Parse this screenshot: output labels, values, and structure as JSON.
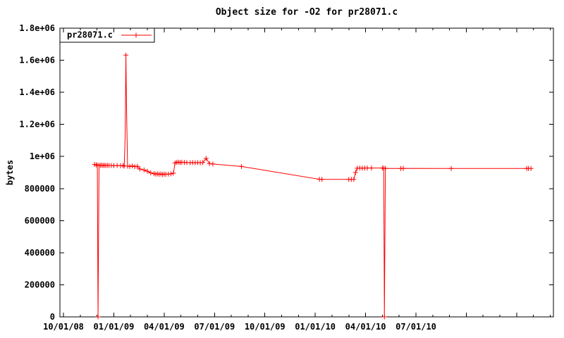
{
  "title": "Object size for -O2 for pr28071.c",
  "colors": {
    "series": "#ff0000",
    "axis": "#000000",
    "background": "#ffffff"
  },
  "chart_data": {
    "type": "line",
    "title": "Object size for -O2 for pr28071.c",
    "xlabel": "",
    "ylabel": "bytes",
    "grid": false,
    "legend_position": "top-left-boxed",
    "legend": [
      {
        "name": "pr28071.c",
        "color": "#ff0000",
        "marker": "plus"
      }
    ],
    "x_unit": "months since 2008-10-01",
    "xlim": [
      -0.21,
      29.19
    ],
    "ylim": [
      0,
      1800000
    ],
    "y_ticks": {
      "values": [
        0,
        200000,
        400000,
        600000,
        800000,
        1000000,
        1200000,
        1400000,
        1600000,
        1800000
      ],
      "labels": [
        "0",
        "200000",
        "400000",
        "600000",
        "800000",
        "1e+06",
        "1.2e+06",
        "1.4e+06",
        "1.6e+06",
        "1.8e+06"
      ]
    },
    "x_tick_labels": [
      {
        "month": 0,
        "label": "10/01/08"
      },
      {
        "month": 3,
        "label": "01/01/09"
      },
      {
        "month": 6,
        "label": "04/01/09"
      },
      {
        "month": 9,
        "label": "07/01/09"
      },
      {
        "month": 12,
        "label": "10/01/09"
      },
      {
        "month": 15,
        "label": "01/01/10"
      },
      {
        "month": 18,
        "label": "04/01/10"
      },
      {
        "month": 21,
        "label": "07/01/10"
      }
    ],
    "x_major_tick_months": [
      0,
      3,
      6,
      9,
      12,
      15,
      18,
      21,
      24,
      27
    ],
    "x_minor_tick_months": [
      1,
      2,
      4,
      5,
      7,
      8,
      10,
      11,
      13,
      14,
      16,
      17,
      19,
      20,
      22,
      23,
      25,
      26,
      28,
      29
    ],
    "series": [
      {
        "name": "pr28071.c",
        "color": "#ff0000",
        "points": [
          [
            1.85,
            950000,
            1
          ],
          [
            1.95,
            948000,
            1
          ],
          [
            2.02,
            946000,
            1
          ],
          [
            2.06,
            0,
            1
          ],
          [
            2.12,
            945000,
            1
          ],
          [
            2.2,
            944000,
            1
          ],
          [
            2.28,
            946000,
            1
          ],
          [
            2.36,
            944000,
            1
          ],
          [
            2.44,
            945000,
            1
          ],
          [
            2.52,
            944000,
            1
          ],
          [
            2.62,
            945000,
            1
          ],
          [
            2.72,
            944000,
            1
          ],
          [
            2.85,
            944000,
            1
          ],
          [
            3.0,
            943000,
            1
          ],
          [
            3.2,
            944000,
            1
          ],
          [
            3.4,
            943000,
            1
          ],
          [
            3.55,
            944000,
            1
          ],
          [
            3.62,
            940000,
            1
          ],
          [
            3.68,
            1140000,
            0
          ],
          [
            3.72,
            1632000,
            1
          ],
          [
            3.76,
            1290000,
            0
          ],
          [
            3.82,
            940000,
            1
          ],
          [
            3.95,
            938000,
            1
          ],
          [
            4.1,
            941000,
            1
          ],
          [
            4.25,
            937000,
            1
          ],
          [
            4.4,
            939000,
            1
          ],
          [
            4.55,
            922000,
            1
          ],
          [
            4.8,
            916000,
            1
          ],
          [
            5.0,
            908000,
            1
          ],
          [
            5.2,
            898000,
            1
          ],
          [
            5.4,
            893000,
            1
          ],
          [
            5.5,
            890000,
            1
          ],
          [
            5.6,
            892000,
            1
          ],
          [
            5.7,
            889000,
            1
          ],
          [
            5.8,
            891000,
            1
          ],
          [
            5.9,
            888000,
            1
          ],
          [
            6.0,
            890000,
            1
          ],
          [
            6.1,
            889000,
            1
          ],
          [
            6.25,
            890000,
            1
          ],
          [
            6.4,
            892000,
            1
          ],
          [
            6.55,
            896000,
            1
          ],
          [
            6.65,
            960000,
            1
          ],
          [
            6.75,
            963000,
            1
          ],
          [
            6.85,
            965000,
            1
          ],
          [
            6.95,
            962000,
            1
          ],
          [
            7.05,
            964000,
            1
          ],
          [
            7.2,
            963000,
            1
          ],
          [
            7.35,
            962000,
            1
          ],
          [
            7.55,
            961000,
            1
          ],
          [
            7.7,
            962000,
            1
          ],
          [
            7.85,
            961000,
            1
          ],
          [
            8.0,
            962000,
            1
          ],
          [
            8.15,
            961000,
            1
          ],
          [
            8.3,
            962000,
            1
          ],
          [
            8.5,
            988000,
            1
          ],
          [
            8.7,
            956000,
            1
          ],
          [
            8.9,
            953000,
            1
          ],
          [
            10.6,
            938000,
            1
          ],
          [
            15.25,
            858000,
            1
          ],
          [
            15.4,
            857000,
            1
          ],
          [
            17.0,
            857000,
            1
          ],
          [
            17.15,
            857000,
            1
          ],
          [
            17.3,
            857000,
            1
          ],
          [
            17.4,
            900000,
            1
          ],
          [
            17.5,
            927000,
            1
          ],
          [
            17.65,
            928000,
            1
          ],
          [
            17.8,
            927000,
            1
          ],
          [
            17.95,
            928000,
            1
          ],
          [
            18.1,
            928000,
            1
          ],
          [
            18.35,
            928000,
            1
          ],
          [
            19.0,
            928000,
            1
          ],
          [
            19.08,
            927000,
            1
          ],
          [
            19.12,
            0,
            1
          ],
          [
            19.18,
            926000,
            1
          ],
          [
            20.1,
            925000,
            1
          ],
          [
            20.24,
            926000,
            1
          ],
          [
            23.1,
            925000,
            1
          ],
          [
            27.6,
            925000,
            1
          ],
          [
            27.7,
            925000,
            1
          ],
          [
            27.85,
            925000,
            1
          ]
        ]
      }
    ]
  }
}
